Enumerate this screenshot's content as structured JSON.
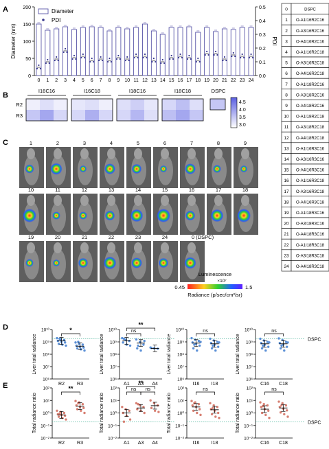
{
  "panel_letters": [
    "A",
    "B",
    "C",
    "D",
    "E"
  ],
  "chart_data": [
    {
      "id": "A",
      "type": "bar",
      "categories": [
        "0",
        "1",
        "2",
        "3",
        "4",
        "5",
        "6",
        "7",
        "8",
        "9",
        "10",
        "11",
        "12",
        "13",
        "14",
        "15",
        "16",
        "17",
        "18",
        "19",
        "20",
        "21",
        "22",
        "23",
        "24"
      ],
      "ylabel": "Diameter (nm)",
      "y2label": "PDI",
      "ylim": [
        0,
        200
      ],
      "y2lim": [
        0,
        0.5
      ],
      "yticks": [
        "0",
        "50",
        "100",
        "150",
        "200"
      ],
      "y2ticks": [
        "0.0",
        "0.1",
        "0.2",
        "0.3",
        "0.4",
        "0.5"
      ],
      "legend": [
        "Diameter",
        "PDI"
      ],
      "series": [
        {
          "name": "Diameter",
          "values": [
            150,
            132,
            136,
            142,
            134,
            140,
            142,
            140,
            130,
            140,
            136,
            140,
            150,
            130,
            120,
            140,
            140,
            142,
            126,
            140,
            128,
            136,
            134,
            140,
            140
          ]
        },
        {
          "name": "PDI",
          "values": [
            0.06,
            0.1,
            0.12,
            0.18,
            0.13,
            0.14,
            0.11,
            0.12,
            0.11,
            0.13,
            0.12,
            0.14,
            0.14,
            0.11,
            0.1,
            0.13,
            0.14,
            0.13,
            0.11,
            0.16,
            0.16,
            0.12,
            0.15,
            0.14,
            0.14
          ]
        }
      ]
    },
    {
      "id": "B",
      "type": "heatmap",
      "groups": [
        "I16C16",
        "I16C18",
        "I18C16",
        "I18C18",
        "DSPC"
      ],
      "rows": [
        "R2",
        "R3"
      ],
      "colorbar_ticks": [
        "4.5",
        "4.0",
        "3.5",
        "3.0"
      ],
      "colorbar_range": [
        2.8,
        4.8
      ],
      "values": [
        [
          [
            3.0,
            3.2,
            3.0
          ],
          [
            3.5,
            3.9,
            3.3
          ]
        ],
        [
          [
            3.1,
            3.2,
            3.0
          ],
          [
            3.3,
            3.8,
            3.3
          ]
        ],
        [
          [
            3.2,
            3.4,
            3.1
          ],
          [
            3.3,
            3.7,
            3.2
          ]
        ],
        [
          [
            3.3,
            3.6,
            3.2
          ],
          [
            3.6,
            3.9,
            3.5
          ]
        ],
        [
          [
            3.5
          ]
        ]
      ]
    },
    {
      "id": "D1",
      "type": "scatter",
      "ylabel": "Liver total radiance",
      "categories": [
        "R2",
        "R3"
      ],
      "log": true,
      "ylim": [
        1000000.0,
        10000000000.0
      ],
      "yticks": [
        "10⁶",
        "10⁷",
        "10⁸",
        "10⁹",
        "10¹⁰"
      ],
      "means": [
        1200000000.0,
        450000000.0
      ],
      "values": [
        [
          2000000000.0,
          1600000000.0,
          1400000000.0,
          1200000000.0,
          1000000000.0,
          900000000.0,
          700000000.0,
          600000000.0,
          500000000.0,
          1800000000.0
        ],
        [
          900000000.0,
          700000000.0,
          600000000.0,
          500000000.0,
          400000000.0,
          350000000.0,
          300000000.0,
          250000000.0,
          200000000.0,
          1000000000.0
        ]
      ],
      "sig": [
        {
          "from": 0,
          "to": 1,
          "label": "*"
        }
      ]
    },
    {
      "id": "D2",
      "type": "scatter",
      "ylabel": "Liver total radiance",
      "categories": [
        "A1",
        "A3",
        "A4"
      ],
      "log": true,
      "ylim": [
        1000000.0,
        10000000000.0
      ],
      "yticks": [
        "10⁶",
        "10⁷",
        "10⁸",
        "10⁹",
        "10¹⁰"
      ],
      "means": [
        1200000000.0,
        800000000.0,
        300000000.0
      ],
      "values": [
        [
          2000000000.0,
          1500000000.0,
          1200000000.0,
          900000000.0,
          600000000.0,
          500000000.0,
          1800000000.0
        ],
        [
          1600000000.0,
          1000000000.0,
          600000000.0,
          300000000.0,
          200000000.0,
          1200000000.0,
          500000000.0
        ],
        [
          350000000.0,
          300000000.0,
          280000000.0,
          320000000.0
        ]
      ],
      "sig": [
        {
          "from": 0,
          "to": 1,
          "label": "ns"
        },
        {
          "from": 0,
          "to": 2,
          "label": "**"
        }
      ]
    },
    {
      "id": "D3",
      "type": "scatter",
      "ylabel": "Liver total radiance",
      "categories": [
        "I16",
        "I18"
      ],
      "log": true,
      "ylim": [
        1000000.0,
        10000000000.0
      ],
      "yticks": [
        "10⁶",
        "10⁷",
        "10⁸",
        "10⁹",
        "10¹⁰"
      ],
      "means": [
        800000000.0,
        700000000.0
      ],
      "values": [
        [
          2000000000.0,
          1500000000.0,
          1200000000.0,
          900000000.0,
          700000000.0,
          500000000.0,
          300000000.0,
          200000000.0,
          1000000000.0,
          600000000.0
        ],
        [
          1800000000.0,
          1300000000.0,
          1000000000.0,
          800000000.0,
          600000000.0,
          400000000.0,
          300000000.0,
          200000000.0,
          900000000.0,
          500000000.0
        ]
      ],
      "sig": [
        {
          "from": 0,
          "to": 1,
          "label": "ns"
        }
      ]
    },
    {
      "id": "D4",
      "type": "scatter",
      "ylabel": "Liver total radiance",
      "categories": [
        "C16",
        "C18"
      ],
      "log": true,
      "ylim": [
        1000000.0,
        10000000000.0
      ],
      "yticks": [
        "10⁶",
        "10⁷",
        "10⁸",
        "10⁹",
        "10¹⁰"
      ],
      "means": [
        700000000.0,
        700000000.0
      ],
      "values": [
        [
          1800000000.0,
          1300000000.0,
          1000000000.0,
          800000000.0,
          600000000.0,
          400000000.0,
          300000000.0,
          200000000.0,
          900000000.0,
          500000000.0
        ],
        [
          1900000000.0,
          1400000000.0,
          1000000000.0,
          800000000.0,
          600000000.0,
          400000000.0,
          300000000.0,
          200000000.0,
          900000000.0,
          500000000.0
        ]
      ],
      "sig": [
        {
          "from": 0,
          "to": 1,
          "label": "ns"
        }
      ],
      "ref_label": "DSPC"
    },
    {
      "id": "E1",
      "type": "scatter",
      "ylabel": "Total radiance ratio",
      "categories": [
        "R2",
        "R3"
      ],
      "log": true,
      "ylim": [
        0.01,
        100
      ],
      "yticks": [
        "10⁻²",
        "10⁻¹",
        "10⁰",
        "10¹",
        "10²"
      ],
      "means": [
        0.7,
        3.5
      ],
      "values": [
        [
          1.5,
          1.2,
          1,
          0.8,
          0.7,
          0.6,
          0.5,
          0.4,
          0.3,
          0.9
        ],
        [
          9,
          7,
          5,
          4,
          3,
          2.5,
          2,
          1.5,
          1,
          6
        ]
      ],
      "sig": [
        {
          "from": 0,
          "to": 1,
          "label": "**"
        }
      ]
    },
    {
      "id": "E2",
      "type": "scatter",
      "ylabel": "Total radiance ratio",
      "categories": [
        "A1",
        "A3",
        "A4"
      ],
      "log": true,
      "ylim": [
        0.01,
        100
      ],
      "yticks": [
        "10⁻²",
        "10⁻¹",
        "10⁰",
        "10¹",
        "10²"
      ],
      "means": [
        1.0,
        2.5,
        3.8
      ],
      "values": [
        [
          3,
          2,
          1.5,
          1,
          0.6,
          0.3,
          0.2
        ],
        [
          6,
          4,
          3,
          2,
          1.5,
          1,
          5
        ],
        [
          10,
          6,
          4,
          2.5,
          1.5,
          1.2
        ]
      ],
      "sig": [
        {
          "from": 0,
          "to": 1,
          "label": "ns"
        },
        {
          "from": 1,
          "to": 2,
          "label": "ns"
        },
        {
          "from": 0,
          "to": 2,
          "label": "**"
        }
      ]
    },
    {
      "id": "E3",
      "type": "scatter",
      "ylabel": "Total radiance ratio",
      "categories": [
        "I16",
        "I18"
      ],
      "log": true,
      "ylim": [
        0.01,
        100
      ],
      "yticks": [
        "10⁻²",
        "10⁻¹",
        "10⁰",
        "10¹",
        "10²"
      ],
      "means": [
        3,
        1.8
      ],
      "values": [
        [
          9,
          7,
          5,
          4,
          3,
          2,
          1.5,
          1,
          0.7,
          6
        ],
        [
          6,
          4,
          3,
          2,
          1.5,
          1,
          0.8,
          0.5,
          0.4,
          2.5
        ]
      ],
      "sig": [
        {
          "from": 0,
          "to": 1,
          "label": "ns"
        }
      ]
    },
    {
      "id": "E4",
      "type": "scatter",
      "ylabel": "Total radiance ratio",
      "categories": [
        "C16",
        "C18"
      ],
      "log": true,
      "ylim": [
        0.01,
        100
      ],
      "yticks": [
        "10⁻²",
        "10⁻¹",
        "10⁰",
        "10¹",
        "10²"
      ],
      "means": [
        2,
        2.5
      ],
      "values": [
        [
          7,
          5,
          4,
          3,
          2,
          1.5,
          1,
          0.7,
          0.4,
          3.5
        ],
        [
          8,
          6,
          4,
          3,
          2.2,
          1.6,
          1.1,
          0.8,
          0.5,
          4
        ]
      ],
      "sig": [
        {
          "from": 0,
          "to": 1,
          "label": "ns"
        }
      ],
      "ref_label": "DSPC"
    }
  ],
  "table": {
    "header": [
      "0",
      "DSPC"
    ],
    "rows": [
      [
        "1",
        "O-A1I16R2C16"
      ],
      [
        "2",
        "O-A3I16R2C16"
      ],
      [
        "3",
        "O-A4I16R2C16"
      ],
      [
        "4",
        "O-A1I16R2C18"
      ],
      [
        "5",
        "O-A3I16R2C18"
      ],
      [
        "6",
        "O-A4I16R2C18"
      ],
      [
        "7",
        "O-A1I18R2C16"
      ],
      [
        "8",
        "O-A3I18R2C16"
      ],
      [
        "9",
        "O-A4I18R2C16"
      ],
      [
        "10",
        "O-A1I18R2C18"
      ],
      [
        "11",
        "O-A3I18R2C18"
      ],
      [
        "12",
        "O-A4I18R2C18"
      ],
      [
        "13",
        "O-A1I16R3C16"
      ],
      [
        "14",
        "O-A3I16R3C16"
      ],
      [
        "15",
        "O-A4I16R3C16"
      ],
      [
        "16",
        "O-A1I16R3C18"
      ],
      [
        "17",
        "O-A3I16R3C18"
      ],
      [
        "18",
        "O-A4I16R3C18"
      ],
      [
        "19",
        "O-A1I18R3C16"
      ],
      [
        "20",
        "O-A3I18R3C16"
      ],
      [
        "21",
        "O-A4I18R3C16"
      ],
      [
        "22",
        "O-A1I18R3C18"
      ],
      [
        "23",
        "O-A3I18R3C18"
      ],
      [
        "24",
        "O-A4I18R3C18"
      ]
    ]
  },
  "mice": {
    "labels": [
      "1",
      "2",
      "3",
      "4",
      "5",
      "6",
      "7",
      "8",
      "9",
      "10",
      "11",
      "12",
      "13",
      "14",
      "15",
      "16",
      "17",
      "18",
      "19",
      "20",
      "21",
      "22",
      "23",
      "24",
      "0 (DSPC)"
    ],
    "signal": [
      0.5,
      0.8,
      0.3,
      0.7,
      0.6,
      0.3,
      0.7,
      0.4,
      0.3,
      1.0,
      0.4,
      0.4,
      0.6,
      0.9,
      1.0,
      0.6,
      0.9,
      1.0,
      0.4,
      0.3,
      0.6,
      0.9,
      0.7,
      0.6,
      0.8
    ]
  },
  "luminescence": {
    "title": "Luminescence",
    "scale": "×10⁷",
    "min": "0.45",
    "max": "1.5",
    "unit": "Radiance (p/sec/cm²/sr)"
  },
  "colors": {
    "bar_edge": "#5a57a8",
    "point": "#3b3b8f",
    "d_dot": "#5a8fd6",
    "e_dot": "#d77f72"
  }
}
